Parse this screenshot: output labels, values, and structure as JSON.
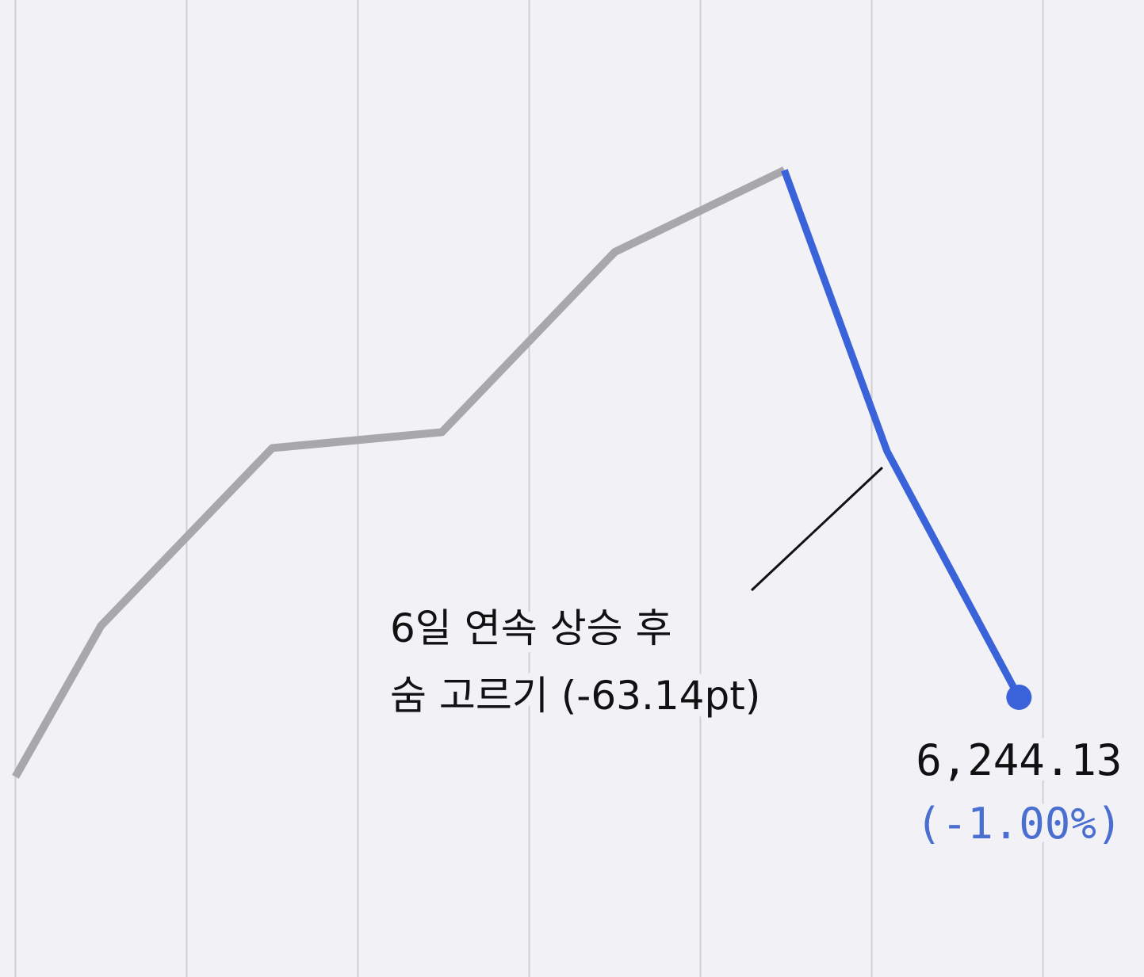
{
  "chart_data": {
    "type": "line",
    "xlim": [
      -0.09,
      6.59
    ],
    "xticks": [
      0,
      1,
      2,
      3,
      4,
      5,
      6
    ],
    "ylim": [
      6210.6,
      6327.7
    ],
    "grid": true,
    "series": [
      {
        "color": "#a7a7ac",
        "x": [
          0,
          0.5,
          1.5,
          2.49,
          3.5,
          4.49
        ],
        "values": [
          6234.6,
          6252.7,
          6274.0,
          6275.9,
          6297.5,
          6307.3
        ]
      },
      {
        "color": "#3a62d9",
        "x": [
          4.49,
          5.09,
          5.86
        ],
        "values": [
          6307.3,
          6273.6,
          6244.13
        ],
        "value_labels": [
          null,
          null,
          "6,244.13"
        ]
      }
    ],
    "change_label": "(-1.00%)",
    "change_color": "#4a6fd0",
    "annotation": [
      "6일 연속 상승 후",
      "숨 고르기 (-63.14pt)"
    ]
  }
}
